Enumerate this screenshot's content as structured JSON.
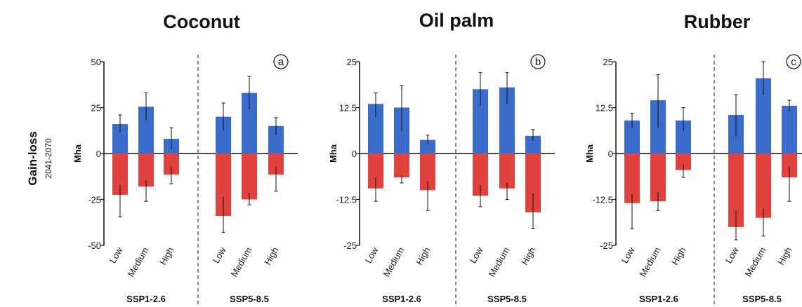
{
  "row_label": "Gain-loss",
  "row_sublabel": "2041-2070",
  "colors": {
    "gain": "#3a6ccc",
    "loss": "#e0423e"
  },
  "chart_data": [
    {
      "type": "bar",
      "title": "Coconut",
      "panel_letter": "a",
      "ylabel": "Mha",
      "ylim": [
        -50,
        50
      ],
      "yticks": [
        50,
        25,
        0,
        -25,
        -50
      ],
      "ytick_labels": [
        "50",
        "25",
        "0",
        "-25",
        "-50"
      ],
      "groups": [
        {
          "label": "SSP1-2.6",
          "categories": [
            "Low",
            "Medium",
            "High"
          ],
          "gain": [
            16,
            25.5,
            8
          ],
          "gain_err": [
            [
              11.5,
              21
            ],
            [
              18,
              33
            ],
            [
              2.5,
              14
            ]
          ],
          "loss": [
            -22.5,
            -18,
            -11.5
          ],
          "loss_err": [
            [
              -34.5,
              -17
            ],
            [
              -26,
              -14.5
            ],
            [
              -16.5,
              -7
            ]
          ]
        },
        {
          "label": "SSP5-8.5",
          "categories": [
            "Low",
            "Medium",
            "High"
          ],
          "gain": [
            20,
            33,
            15
          ],
          "gain_err": [
            [
              12.5,
              27.5
            ],
            [
              24,
              42
            ],
            [
              10,
              19.5
            ]
          ],
          "loss": [
            -34,
            -25,
            -11.5
          ],
          "loss_err": [
            [
              -43,
              -23.5
            ],
            [
              -28,
              -21.5
            ],
            [
              -20.5,
              -7
            ]
          ]
        }
      ]
    },
    {
      "type": "bar",
      "title": "Oil palm",
      "panel_letter": "b",
      "ylabel": "Mha",
      "ylim": [
        -25,
        25
      ],
      "yticks": [
        25,
        12.5,
        0,
        -12.5,
        -25
      ],
      "ytick_labels": [
        "25",
        "12.5",
        "0",
        "-12.5",
        "-25"
      ],
      "groups": [
        {
          "label": "SSP1-2.6",
          "categories": [
            "Low",
            "Medium",
            "High"
          ],
          "gain": [
            13.5,
            12.5,
            3.7
          ],
          "gain_err": [
            [
              10,
              16.5
            ],
            [
              6,
              18.5
            ],
            [
              2.5,
              5
            ]
          ],
          "loss": [
            -9.5,
            -6.5,
            -10
          ],
          "loss_err": [
            [
              -13,
              -6.5
            ],
            [
              -8,
              -6
            ],
            [
              -15.5,
              -7.5
            ]
          ]
        },
        {
          "label": "SSP5-8.5",
          "categories": [
            "Low",
            "Medium",
            "High"
          ],
          "gain": [
            17.5,
            18,
            4.8
          ],
          "gain_err": [
            [
              13,
              22
            ],
            [
              13.5,
              22
            ],
            [
              3.5,
              6.5
            ]
          ],
          "loss": [
            -11.5,
            -9.5,
            -16
          ],
          "loss_err": [
            [
              -14.5,
              -8.5
            ],
            [
              -12.5,
              -8
            ],
            [
              -20.5,
              -10.8
            ]
          ]
        }
      ]
    },
    {
      "type": "bar",
      "title": "Rubber",
      "panel_letter": "c",
      "ylabel": "Mha",
      "ylim": [
        -25,
        25
      ],
      "yticks": [
        25,
        12.5,
        0,
        -12.5,
        -25
      ],
      "ytick_labels": [
        "25",
        "12.5",
        "0",
        "-12.5",
        "-25"
      ],
      "groups": [
        {
          "label": "SSP1-2.6",
          "categories": [
            "Low",
            "Medium",
            "High"
          ],
          "gain": [
            9,
            14.5,
            9
          ],
          "gain_err": [
            [
              7,
              11
            ],
            [
              7,
              21.5
            ],
            [
              6,
              12.5
            ]
          ],
          "loss": [
            -13.5,
            -13,
            -4.5
          ],
          "loss_err": [
            [
              -20.5,
              -11
            ],
            [
              -15.5,
              -10.5
            ],
            [
              -6.5,
              -3
            ]
          ]
        },
        {
          "label": "SSP5-8.5",
          "categories": [
            "Low",
            "Medium",
            "High"
          ],
          "gain": [
            10.5,
            20.5,
            13
          ],
          "gain_err": [
            [
              4.5,
              16
            ],
            [
              16,
              25
            ],
            [
              11.5,
              14.5
            ]
          ],
          "loss": [
            -20,
            -17.5,
            -6.5
          ],
          "loss_err": [
            [
              -23.5,
              -15.5
            ],
            [
              -22.5,
              -15
            ],
            [
              -13,
              -3.5
            ]
          ]
        }
      ]
    }
  ]
}
